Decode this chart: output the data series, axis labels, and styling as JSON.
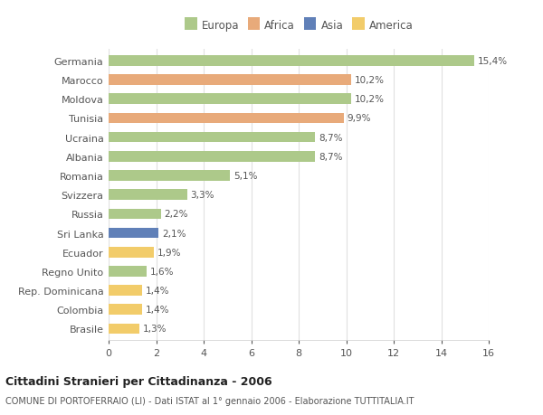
{
  "countries": [
    "Germania",
    "Marocco",
    "Moldova",
    "Tunisia",
    "Ucraina",
    "Albania",
    "Romania",
    "Svizzera",
    "Russia",
    "Sri Lanka",
    "Ecuador",
    "Regno Unito",
    "Rep. Dominicana",
    "Colombia",
    "Brasile"
  ],
  "values": [
    15.4,
    10.2,
    10.2,
    9.9,
    8.7,
    8.7,
    5.1,
    3.3,
    2.2,
    2.1,
    1.9,
    1.6,
    1.4,
    1.4,
    1.3
  ],
  "labels": [
    "15,4%",
    "10,2%",
    "10,2%",
    "9,9%",
    "8,7%",
    "8,7%",
    "5,1%",
    "3,3%",
    "2,2%",
    "2,1%",
    "1,9%",
    "1,6%",
    "1,4%",
    "1,4%",
    "1,3%"
  ],
  "colors": [
    "#adc98a",
    "#e8aa7a",
    "#adc98a",
    "#e8aa7a",
    "#adc98a",
    "#adc98a",
    "#adc98a",
    "#adc98a",
    "#adc98a",
    "#6080b8",
    "#f2cc6a",
    "#adc98a",
    "#f2cc6a",
    "#f2cc6a",
    "#f2cc6a"
  ],
  "legend": [
    {
      "label": "Europa",
      "color": "#adc98a"
    },
    {
      "label": "Africa",
      "color": "#e8aa7a"
    },
    {
      "label": "Asia",
      "color": "#6080b8"
    },
    {
      "label": "America",
      "color": "#f2cc6a"
    }
  ],
  "title": "Cittadini Stranieri per Cittadinanza - 2006",
  "subtitle": "COMUNE DI PORTOFERRAIO (LI) - Dati ISTAT al 1° gennaio 2006 - Elaborazione TUTTITALIA.IT",
  "xlim": [
    0,
    16
  ],
  "xticks": [
    0,
    2,
    4,
    6,
    8,
    10,
    12,
    14,
    16
  ],
  "background_color": "#ffffff",
  "grid_color": "#e0e0e0",
  "bar_height": 0.55
}
